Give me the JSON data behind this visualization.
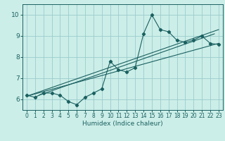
{
  "title": "",
  "xlabel": "Humidex (Indice chaleur)",
  "background_color": "#cceee8",
  "grid_color": "#99cccc",
  "line_color": "#1a6060",
  "xlim": [
    -0.5,
    23.5
  ],
  "ylim": [
    5.5,
    10.5
  ],
  "xticks": [
    0,
    1,
    2,
    3,
    4,
    5,
    6,
    7,
    8,
    9,
    10,
    11,
    12,
    13,
    14,
    15,
    16,
    17,
    18,
    19,
    20,
    21,
    22,
    23
  ],
  "yticks": [
    6,
    7,
    8,
    9,
    10
  ],
  "x_data": [
    0,
    1,
    2,
    3,
    4,
    5,
    6,
    7,
    8,
    9,
    10,
    11,
    12,
    13,
    14,
    15,
    16,
    17,
    18,
    19,
    20,
    21,
    22,
    23
  ],
  "y_data": [
    6.2,
    6.1,
    6.3,
    6.3,
    6.2,
    5.9,
    5.75,
    6.1,
    6.3,
    6.5,
    7.8,
    7.4,
    7.3,
    7.5,
    9.1,
    10.0,
    9.3,
    9.2,
    8.8,
    8.7,
    8.8,
    9.0,
    8.65,
    8.6
  ],
  "trend1_x": [
    0,
    23
  ],
  "trend1_y": [
    6.15,
    8.65
  ],
  "trend2_x": [
    0,
    23
  ],
  "trend2_y": [
    6.15,
    9.3
  ],
  "trend3_x": [
    1.5,
    22.5
  ],
  "trend3_y": [
    6.2,
    9.1
  ]
}
